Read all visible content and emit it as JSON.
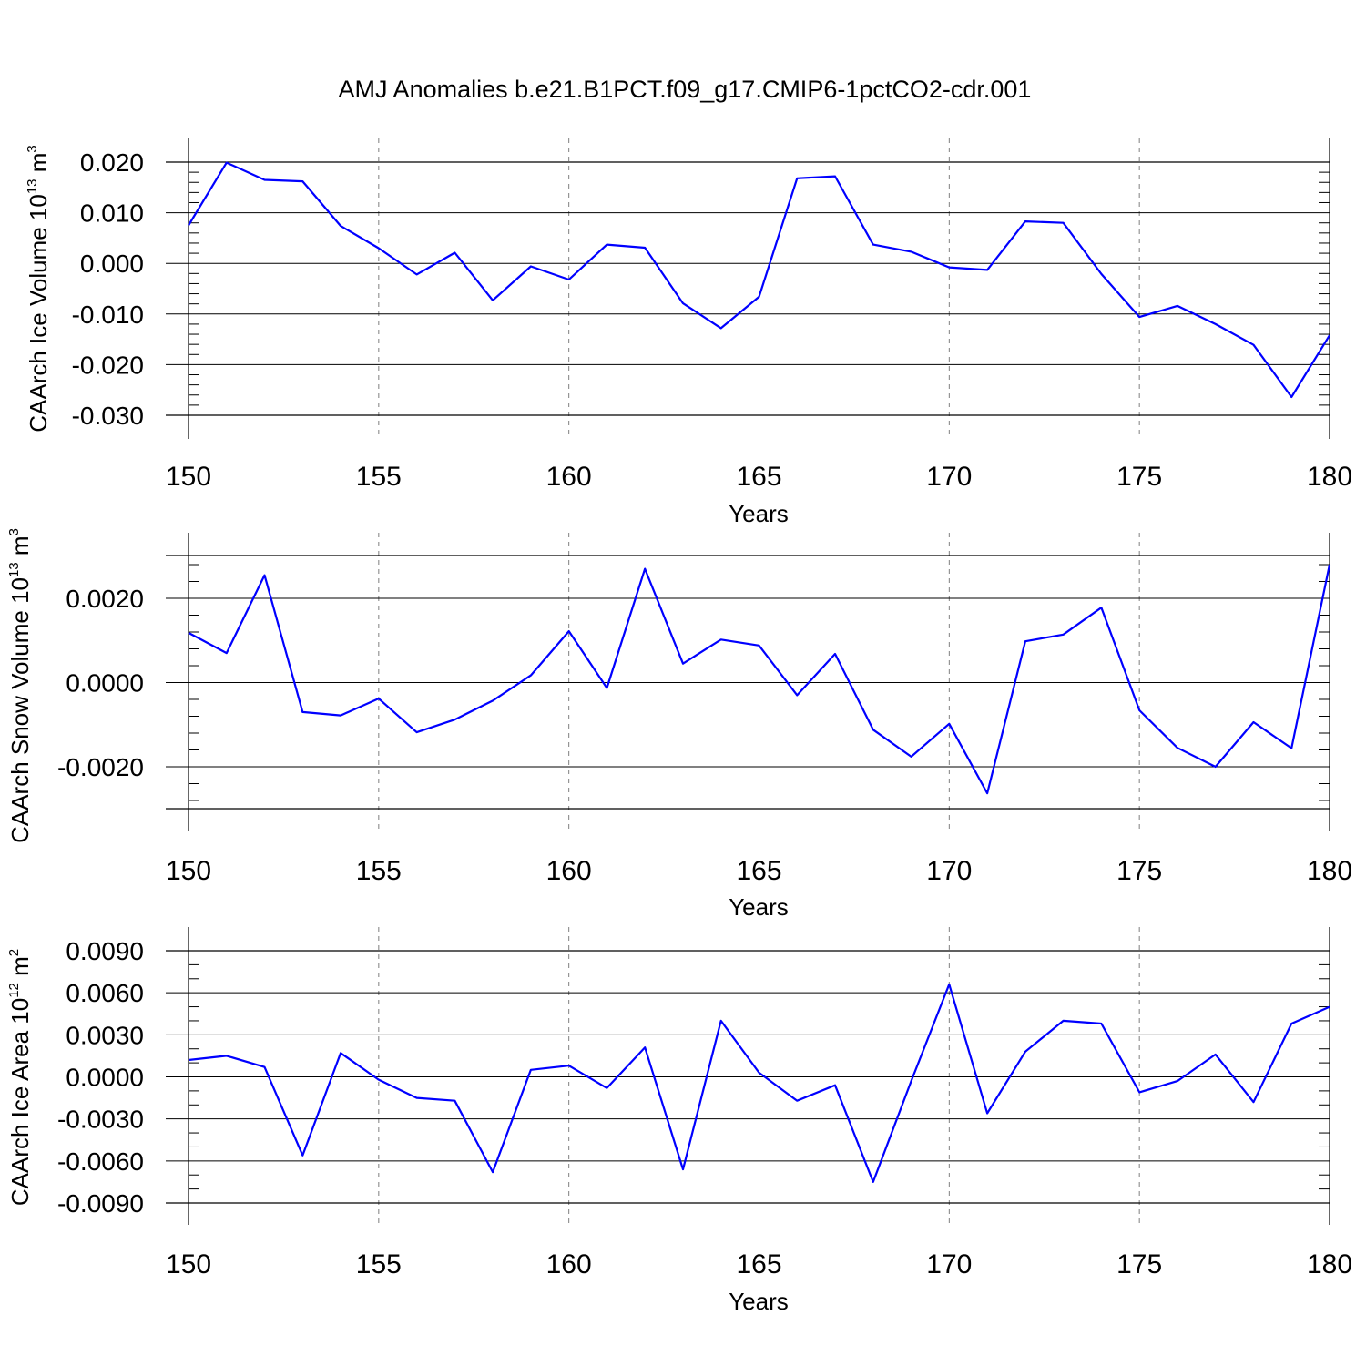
{
  "title": "AMJ Anomalies b.e21.B1PCT.f09_g17.CMIP6-1pctCO2-cdr.001",
  "colors": {
    "line": "#0000ff",
    "axis": "#000000",
    "grid": "#808080"
  },
  "chart_data": [
    {
      "type": "line",
      "ylabel": {
        "text": "CAArch Ice Volume 10",
        "exp": "13",
        "unit": "m",
        "unit_exp": "3"
      },
      "xlabel": "Years",
      "xlim": [
        150,
        180
      ],
      "ylim": [
        -0.03,
        0.025
      ],
      "xticks": [
        "150",
        "155",
        "160",
        "165",
        "170",
        "175",
        "180"
      ],
      "yticks": [
        {
          "v": 0.02,
          "label": "0.020"
        },
        {
          "v": 0.01,
          "label": "0.010"
        },
        {
          "v": 0.0,
          "label": "0.000"
        },
        {
          "v": -0.01,
          "label": "-0.010"
        },
        {
          "v": -0.02,
          "label": "-0.020"
        },
        {
          "v": -0.03,
          "label": "-0.030"
        }
      ],
      "x": [
        150,
        151,
        152,
        153,
        154,
        155,
        156,
        157,
        158,
        159,
        160,
        161,
        162,
        163,
        164,
        165,
        166,
        167,
        168,
        169,
        170,
        171,
        172,
        173,
        174,
        175,
        176,
        177,
        178,
        179,
        180
      ],
      "values": [
        0.0075,
        0.0199,
        0.0165,
        0.0162,
        0.0074,
        0.003,
        -0.0022,
        0.0021,
        -0.0073,
        -0.0006,
        -0.0032,
        0.0037,
        0.0031,
        -0.0079,
        -0.0128,
        -0.0066,
        0.0168,
        0.0172,
        0.0037,
        0.0023,
        -0.0008,
        -0.0013,
        0.0083,
        0.008,
        -0.0021,
        -0.0106,
        -0.0084,
        -0.012,
        -0.0161,
        -0.0264,
        -0.0142
      ]
    },
    {
      "type": "line",
      "ylabel": {
        "text": "CAArch Snow Volume 10",
        "exp": "13",
        "unit": "m",
        "unit_exp": "3"
      },
      "xlabel": "Years",
      "xlim": [
        150,
        180
      ],
      "ylim": [
        -0.003,
        0.003
      ],
      "xticks": [
        "150",
        "155",
        "160",
        "165",
        "170",
        "175",
        "180"
      ],
      "yticks": [
        {
          "v": 0.002,
          "label": "0.0020"
        },
        {
          "v": 0.0,
          "label": "0.0000"
        },
        {
          "v": -0.002,
          "label": "-0.0020"
        }
      ],
      "x": [
        150,
        151,
        152,
        153,
        154,
        155,
        156,
        157,
        158,
        159,
        160,
        161,
        162,
        163,
        164,
        165,
        166,
        167,
        168,
        169,
        170,
        171,
        172,
        173,
        174,
        175,
        176,
        177,
        178,
        179,
        180
      ],
      "values": [
        0.00118,
        0.0007,
        0.00255,
        -0.0007,
        -0.00078,
        -0.00038,
        -0.00118,
        -0.00088,
        -0.00043,
        0.00017,
        0.00122,
        -0.00013,
        0.0027,
        0.00045,
        0.00102,
        0.00088,
        -0.0003,
        0.00068,
        -0.00112,
        -0.00176,
        -0.00098,
        -0.00263,
        0.00098,
        0.00114,
        0.00178,
        -0.00066,
        -0.00155,
        -0.002,
        -0.00094,
        -0.00156,
        0.0028
      ]
    },
    {
      "type": "line",
      "ylabel": {
        "text": "CAArch Ice Area 10",
        "exp": "12",
        "unit": "m",
        "unit_exp": "2"
      },
      "xlabel": "Years",
      "xlim": [
        150,
        180
      ],
      "ylim": [
        -0.009,
        0.009
      ],
      "xticks": [
        "150",
        "155",
        "160",
        "165",
        "170",
        "175",
        "180"
      ],
      "yticks": [
        {
          "v": 0.009,
          "label": "0.0090"
        },
        {
          "v": 0.006,
          "label": "0.0060"
        },
        {
          "v": 0.003,
          "label": "0.0030"
        },
        {
          "v": 0.0,
          "label": "0.0000"
        },
        {
          "v": -0.003,
          "label": "-0.0030"
        },
        {
          "v": -0.006,
          "label": "-0.0060"
        },
        {
          "v": -0.009,
          "label": "-0.0090"
        }
      ],
      "x": [
        150,
        151,
        152,
        153,
        154,
        155,
        156,
        157,
        158,
        159,
        160,
        161,
        162,
        163,
        164,
        165,
        166,
        167,
        168,
        169,
        170,
        171,
        172,
        173,
        174,
        175,
        176,
        177,
        178,
        179,
        180
      ],
      "values": [
        0.0012,
        0.0015,
        0.0007,
        -0.0056,
        0.0017,
        -0.0002,
        -0.0015,
        -0.0017,
        -0.0068,
        0.0005,
        0.0008,
        -0.0008,
        0.0021,
        -0.0066,
        0.004,
        0.0003,
        -0.0017,
        -0.0006,
        -0.0075,
        -0.0003,
        0.0066,
        -0.0026,
        0.0018,
        0.004,
        0.0038,
        -0.0011,
        -0.0003,
        0.0016,
        -0.0018,
        0.0038,
        0.005
      ]
    }
  ]
}
